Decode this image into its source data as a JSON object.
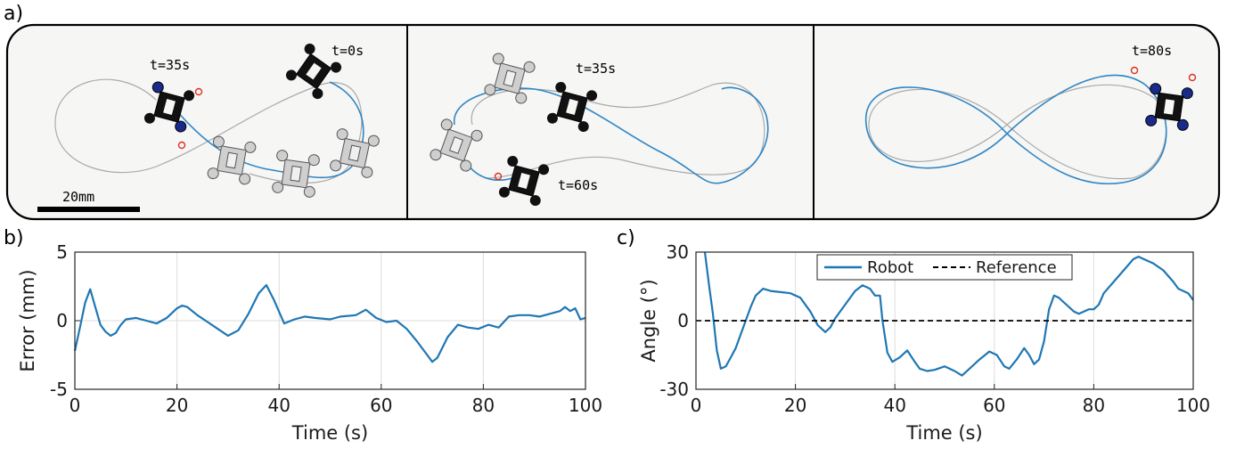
{
  "panel_labels": {
    "a": "a)",
    "b": "b)",
    "c": "c)"
  },
  "photos": {
    "scale_bar_label": "20mm",
    "panel1": {
      "time_labels": [
        "t=35s",
        "t=0s"
      ]
    },
    "panel2": {
      "time_labels": [
        "t=35s",
        "t=60s"
      ]
    },
    "panel3": {
      "time_labels": [
        "t=80s"
      ]
    },
    "colors": {
      "trajectory": "#2f86c4",
      "reference": "#aaaaaa",
      "marker": "#e03020",
      "robot_dark": "#111111",
      "robot_ghost": "#bdbdbd"
    }
  },
  "chart_data": [
    {
      "type": "line",
      "xlabel": "Time (s)",
      "ylabel": "Error (mm)",
      "xlim": [
        0,
        100
      ],
      "ylim": [
        -5,
        5
      ],
      "xticks": [
        "0",
        "20",
        "40",
        "60",
        "80",
        "100"
      ],
      "yticks": [
        "5",
        "0",
        "-5"
      ],
      "grid": true,
      "series": [
        {
          "color": "#1f77b4",
          "x": [
            0,
            1,
            2,
            3,
            4,
            5,
            6,
            7,
            8,
            9,
            10,
            12,
            14,
            16,
            18,
            20,
            21,
            22,
            24,
            26,
            28,
            30,
            32,
            34,
            36,
            37.5,
            39,
            41,
            43,
            45,
            47,
            50,
            52,
            55,
            57,
            59,
            61,
            63,
            65,
            67,
            69,
            70,
            71,
            73,
            75,
            77,
            79,
            81,
            83,
            85,
            87,
            89,
            91,
            93,
            95,
            96,
            97,
            98,
            99,
            100
          ],
          "y": [
            -2.2,
            -0.5,
            1.3,
            2.3,
            1.0,
            -0.3,
            -0.8,
            -1.1,
            -0.9,
            -0.3,
            0.1,
            0.2,
            0.0,
            -0.2,
            0.2,
            0.9,
            1.1,
            1.0,
            0.4,
            -0.1,
            -0.6,
            -1.1,
            -0.7,
            0.5,
            2.0,
            2.6,
            1.5,
            -0.2,
            0.1,
            0.3,
            0.2,
            0.1,
            0.3,
            0.4,
            0.8,
            0.2,
            -0.1,
            0.0,
            -0.6,
            -1.5,
            -2.5,
            -3.0,
            -2.7,
            -1.2,
            -0.3,
            -0.5,
            -0.6,
            -0.3,
            -0.5,
            0.3,
            0.4,
            0.4,
            0.3,
            0.5,
            0.7,
            1.0,
            0.7,
            0.9,
            0.1,
            0.2
          ]
        }
      ]
    },
    {
      "type": "line",
      "xlabel": "Time (s)",
      "ylabel": "Angle (°)",
      "xlim": [
        0,
        100
      ],
      "ylim": [
        -30,
        30
      ],
      "xticks": [
        "0",
        "20",
        "40",
        "60",
        "80",
        "100"
      ],
      "yticks": [
        "30",
        "0",
        "-30"
      ],
      "grid": true,
      "legend": {
        "placement": "top-center",
        "entries": [
          "Robot",
          "Reference"
        ]
      },
      "series": [
        {
          "name": "Robot",
          "color": "#1f77b4",
          "style": "solid",
          "x": [
            1.8,
            2.6,
            3.4,
            4.2,
            5.0,
            6.0,
            7.0,
            8.0,
            9.0,
            10.0,
            11.0,
            12.0,
            13.5,
            15.0,
            17.0,
            19.0,
            21.0,
            23.0,
            24.5,
            26.0,
            27.0,
            28.0,
            30.0,
            32.0,
            33.5,
            35.0,
            36.0,
            37.0,
            37.5,
            38.5,
            39.5,
            41.0,
            42.5,
            44.0,
            45.0,
            46.5,
            48.0,
            50.0,
            52.0,
            53.5,
            55.0,
            57.0,
            59.0,
            60.5,
            62.0,
            63.0,
            64.5,
            66.0,
            67.0,
            68.0,
            69.0,
            70.0,
            71.0,
            72.0,
            73.0,
            74.0,
            75.0,
            76.0,
            77.0,
            78.0,
            79.0,
            80.0,
            81.0,
            82.0,
            84.0,
            86.0,
            88.0,
            89.0,
            90.0,
            92.0,
            94.0,
            96.0,
            97.0,
            98.0,
            99.0,
            100.0
          ],
          "y": [
            30,
            16,
            3,
            -13,
            -21,
            -20,
            -16,
            -12,
            -6,
            0,
            6,
            11,
            14,
            13,
            12.5,
            12,
            10,
            4,
            -2,
            -5,
            -3,
            1,
            7,
            13,
            15.5,
            14,
            11,
            11,
            0,
            -14,
            -18,
            -16,
            -13,
            -18,
            -21,
            -22,
            -21.5,
            -20,
            -22,
            -24,
            -21,
            -17,
            -13.5,
            -15,
            -20,
            -21,
            -17,
            -12,
            -15,
            -19,
            -17,
            -9,
            5,
            11,
            10,
            8,
            6,
            4,
            3,
            4,
            5,
            5,
            7,
            12,
            17,
            22,
            27,
            28,
            27,
            25,
            22,
            17,
            14,
            13,
            12,
            9
          ]
        },
        {
          "name": "Reference",
          "color": "#000000",
          "style": "dashed",
          "x": [
            0,
            100
          ],
          "y": [
            0,
            0
          ]
        }
      ]
    }
  ]
}
